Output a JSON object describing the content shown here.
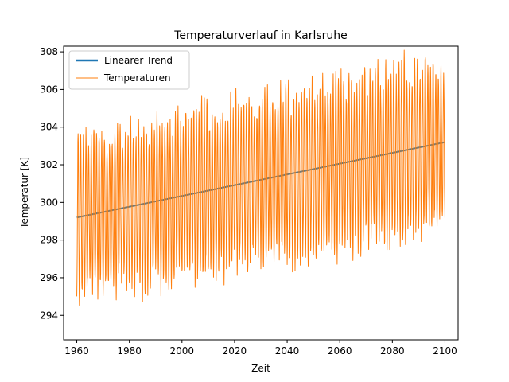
{
  "chart_data": {
    "type": "line",
    "title": "Temperaturverlauf in Karlsruhe",
    "xlabel": "Zeit",
    "ylabel": "Temperatur [K]",
    "xlim": [
      1955,
      2105
    ],
    "ylim": [
      292.7,
      308.3
    ],
    "xticks": [
      1960,
      1980,
      2000,
      2020,
      2040,
      2060,
      2080,
      2100
    ],
    "yticks": [
      294,
      296,
      298,
      300,
      302,
      304,
      306,
      308
    ],
    "grid": false,
    "legend_position": "top-left",
    "series": [
      {
        "name": "Linearer Trend",
        "kind": "trend",
        "color": "#1f77b4",
        "x": [
          1960,
          2100
        ],
        "y": [
          299.2,
          303.2
        ]
      },
      {
        "name": "Temperaturen",
        "kind": "monthly_seasonal",
        "color": "#ff7f0e",
        "x_start": 1960,
        "x_end": 2100,
        "trend_start": 299.2,
        "trend_end": 303.2,
        "seasonal_amplitude_start": 4.0,
        "seasonal_amplitude_end": 4.3
      }
    ]
  }
}
